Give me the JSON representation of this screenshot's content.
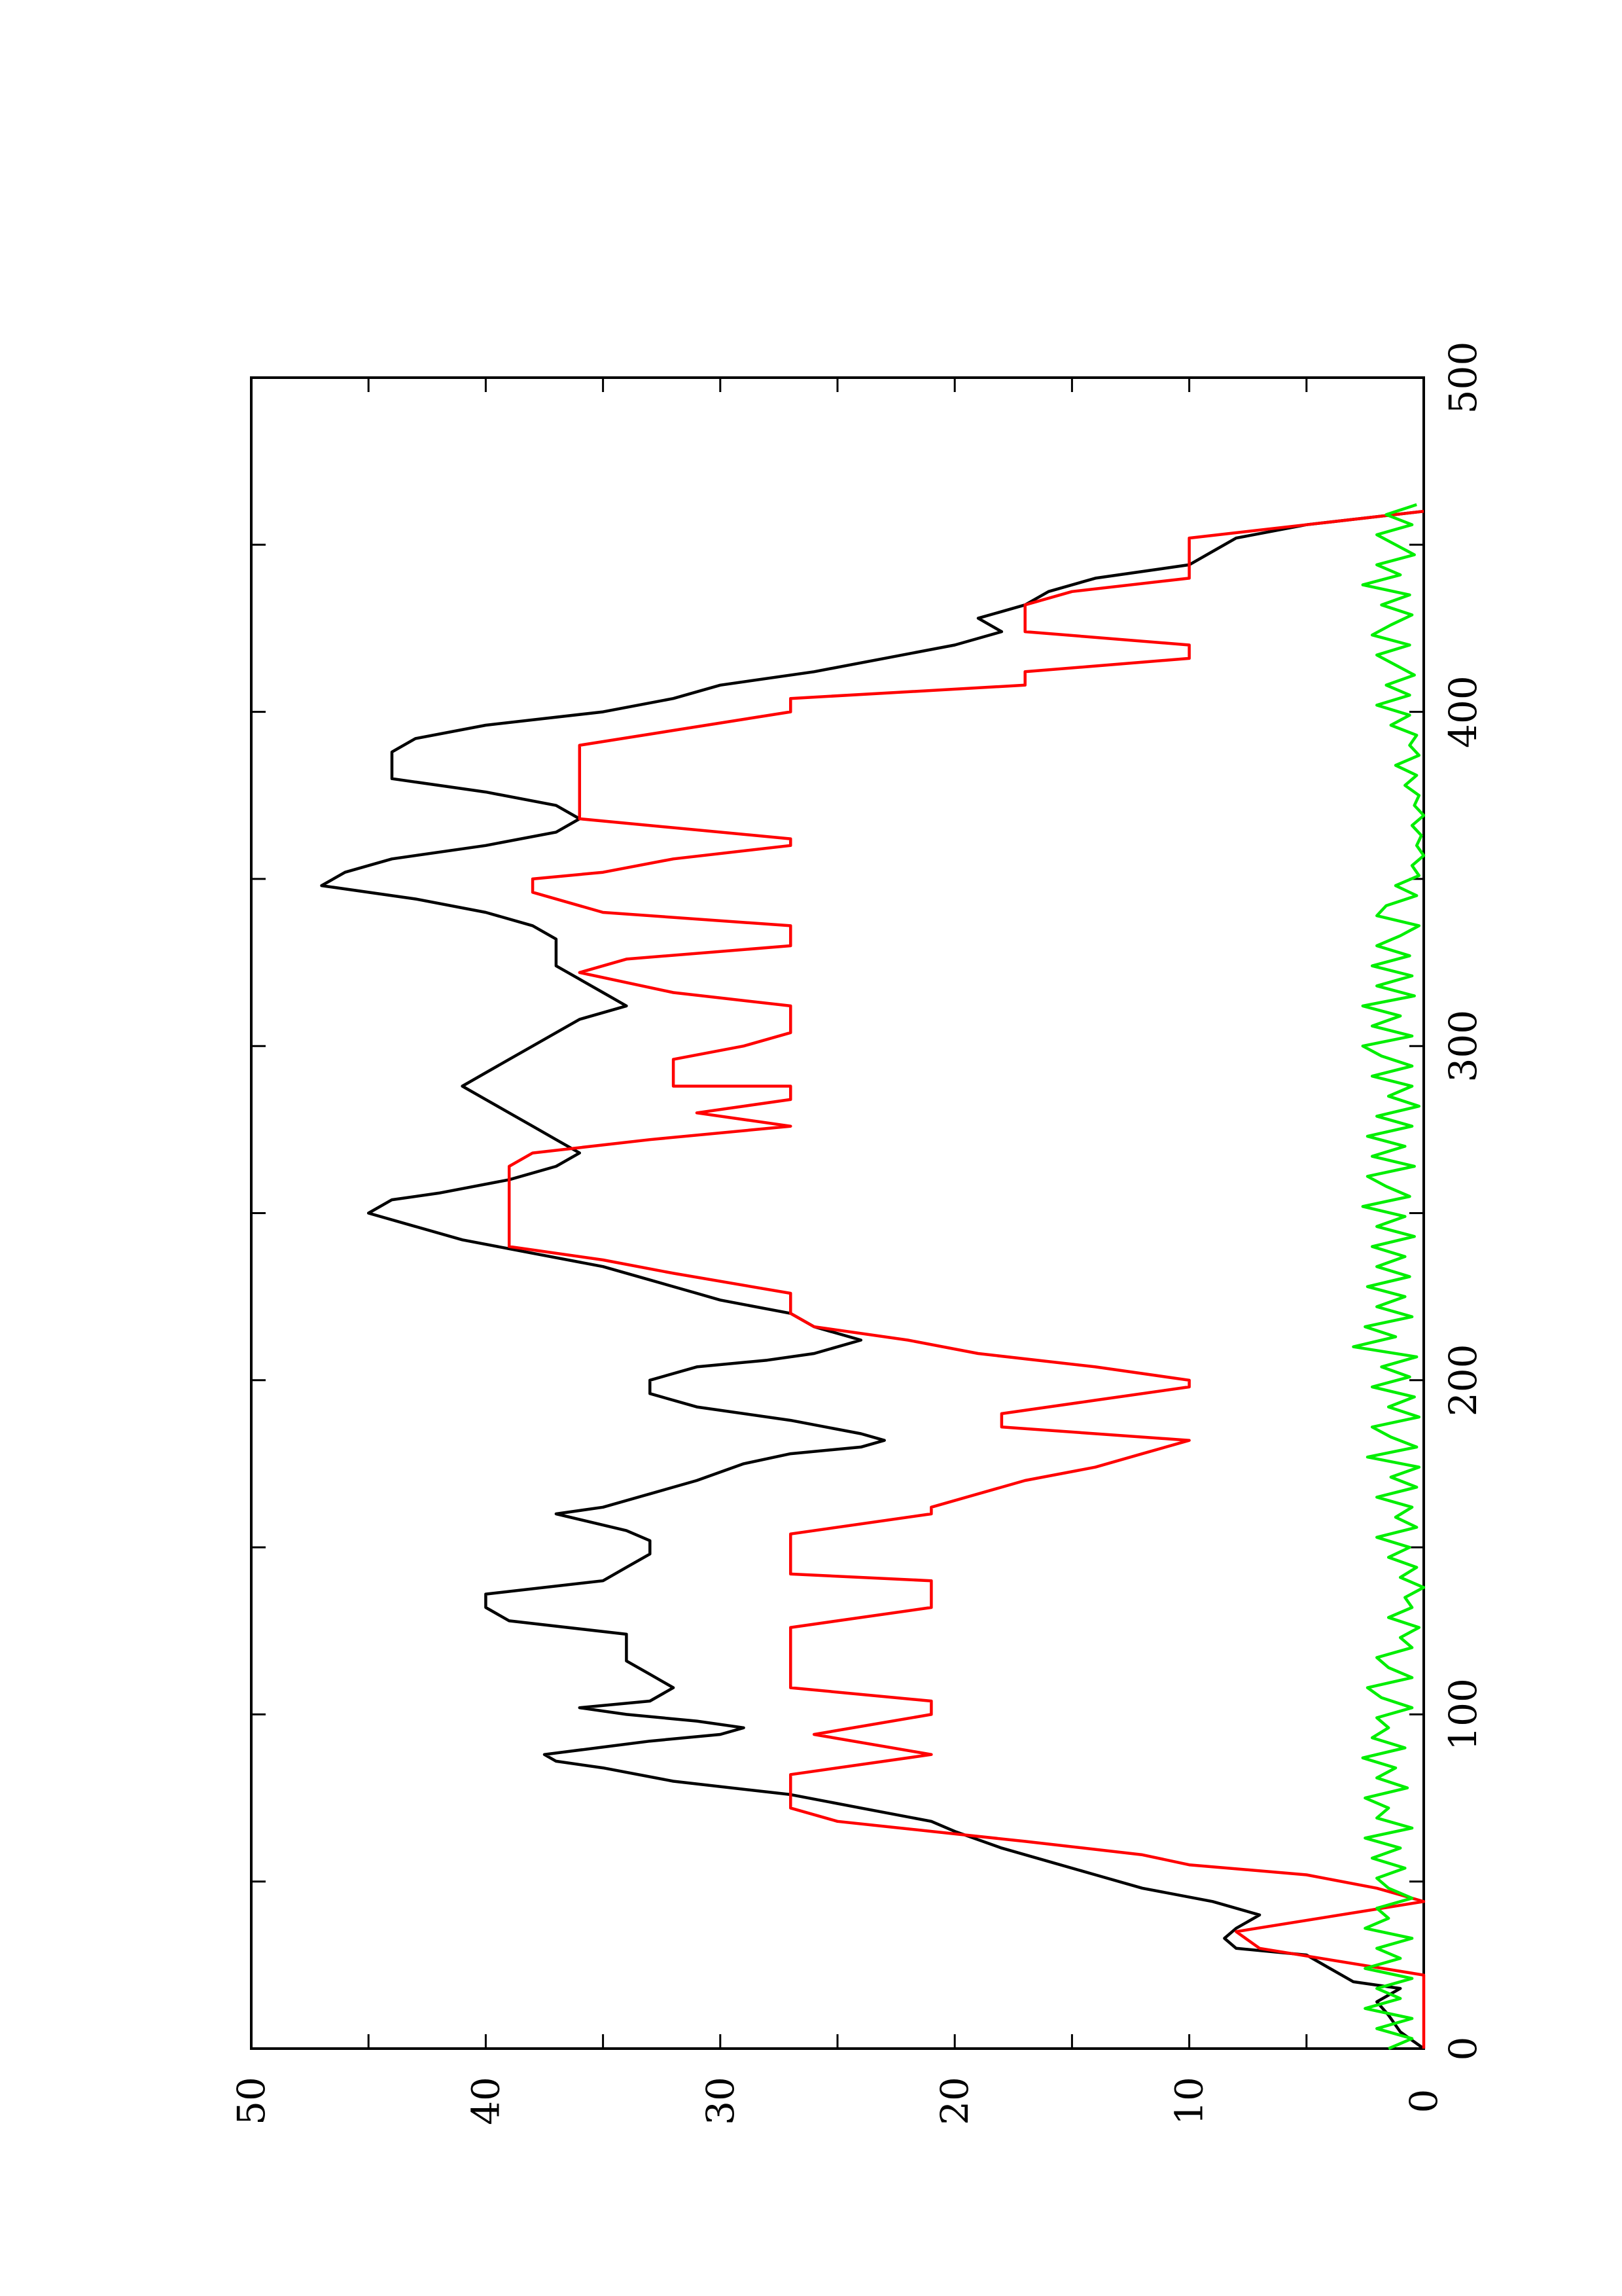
{
  "chart_data": {
    "type": "line",
    "orientation": "rotated-90-ccw",
    "title": "",
    "xlabel": "",
    "ylabel": "",
    "xlim": [
      0,
      500
    ],
    "ylim": [
      0,
      50
    ],
    "x_ticks": [
      "0",
      "100",
      "200",
      "300",
      "400",
      "500"
    ],
    "y_ticks": [
      "0",
      "10",
      "20",
      "30",
      "40",
      "50"
    ],
    "grid": false,
    "legend": "none",
    "series": [
      {
        "color": "#000000",
        "x": [
          0,
          5,
          10,
          14,
          18,
          20,
          24,
          28,
          30,
          33,
          36,
          40,
          44,
          48,
          52,
          56,
          60,
          65,
          68,
          72,
          76,
          80,
          84,
          86,
          88,
          92,
          94,
          96,
          98,
          100,
          102,
          104,
          108,
          112,
          116,
          120,
          124,
          128,
          132,
          136,
          140,
          144,
          148,
          152,
          155,
          160,
          162,
          166,
          170,
          175,
          178,
          180,
          182,
          184,
          188,
          192,
          196,
          200,
          204,
          206,
          208,
          212,
          216,
          220,
          224,
          226,
          230,
          234,
          238,
          242,
          246,
          250,
          254,
          256,
          260,
          264,
          268,
          272,
          276,
          280,
          284,
          288,
          292,
          296,
          300,
          304,
          308,
          312,
          316,
          320,
          324,
          328,
          332,
          336,
          340,
          344,
          348,
          352,
          356,
          360,
          364,
          368,
          372,
          376,
          380,
          384,
          388,
          392,
          396,
          400,
          404,
          408,
          412,
          416,
          420,
          424,
          428,
          432,
          436,
          440,
          444,
          448,
          452,
          456,
          460
        ],
        "y": [
          0,
          1,
          1.5,
          2,
          1,
          3,
          4,
          5,
          8,
          8.5,
          8,
          7,
          9,
          12,
          14,
          16,
          18,
          20,
          21,
          24,
          27,
          32,
          35,
          37,
          37.5,
          33,
          30,
          29,
          31,
          34,
          36,
          33,
          32,
          33,
          34,
          34,
          34,
          39,
          40,
          40,
          35,
          34,
          33,
          33,
          34,
          37,
          35,
          33,
          31,
          29,
          27,
          24,
          23,
          24,
          27,
          31,
          33,
          33,
          31,
          28,
          26,
          24,
          26,
          27,
          30,
          31,
          33,
          35,
          38,
          41,
          43,
          45,
          44,
          42,
          39,
          37,
          36,
          37,
          38,
          39,
          40,
          41,
          40,
          39,
          38,
          37,
          36,
          34,
          35,
          36,
          37,
          37,
          37,
          38,
          40,
          43,
          47,
          46,
          44,
          40,
          37,
          36,
          37,
          40,
          44,
          44,
          44,
          43,
          40,
          35,
          32,
          30,
          26,
          23,
          20,
          18,
          19,
          17,
          16,
          14,
          10,
          9,
          8,
          5,
          0
        ]
      },
      {
        "color": "#ff0000",
        "x": [
          0,
          22,
          30,
          35,
          44,
          46,
          48,
          52,
          55,
          58,
          62,
          68,
          72,
          78,
          82,
          88,
          88,
          94,
          94,
          100,
          100,
          104,
          108,
          108,
          116,
          120,
          120,
          126,
          132,
          132,
          140,
          142,
          148,
          148,
          154,
          160,
          162,
          170,
          174,
          178,
          182,
          186,
          190,
          194,
          198,
          200,
          204,
          208,
          212,
          216,
          220,
          226,
          232,
          236,
          240,
          246,
          250,
          254,
          260,
          264,
          268,
          272,
          276,
          280,
          284,
          288,
          288,
          296,
          300,
          304,
          304,
          312,
          316,
          316,
          322,
          322,
          326,
          330,
          336,
          340,
          340,
          346,
          350,
          352,
          356,
          360,
          362,
          368,
          370,
          374,
          378,
          380,
          386,
          390,
          400,
          404,
          408,
          412,
          416,
          420,
          424,
          428,
          430,
          432,
          436,
          440,
          444,
          448,
          452,
          456,
          460
        ],
        "y": [
          0,
          0,
          7,
          8,
          0,
          1,
          2,
          5,
          10,
          12,
          17,
          25,
          27,
          27,
          27,
          21,
          21,
          26,
          26,
          21,
          21,
          21,
          27,
          27,
          27,
          27,
          27,
          27,
          21,
          21,
          21,
          27,
          27,
          27,
          27,
          21,
          21,
          17,
          14,
          12,
          10,
          18,
          18,
          14,
          10,
          10,
          14,
          19,
          22,
          26,
          27,
          27,
          32,
          35,
          39,
          39,
          39,
          39,
          39,
          39,
          38,
          33,
          27,
          31,
          27,
          27,
          32,
          32,
          29,
          27,
          27,
          27,
          32,
          32,
          36,
          36,
          34,
          27,
          27,
          35,
          35,
          38,
          38,
          35,
          32,
          27,
          27,
          36,
          36,
          36,
          36,
          36,
          36,
          36,
          27,
          27,
          17,
          17,
          10,
          10,
          17,
          17,
          17,
          17,
          15,
          10,
          10,
          10,
          10,
          5,
          0
        ]
      },
      {
        "color": "#00ee00",
        "x": [
          0,
          3,
          6,
          9,
          12,
          15,
          18,
          21,
          24,
          27,
          30,
          33,
          36,
          39,
          42,
          45,
          48,
          51,
          54,
          57,
          60,
          63,
          66,
          69,
          72,
          75,
          78,
          81,
          84,
          87,
          90,
          93,
          96,
          99,
          102,
          105,
          108,
          111,
          114,
          117,
          120,
          123,
          126,
          129,
          132,
          135,
          138,
          141,
          144,
          147,
          150,
          153,
          156,
          159,
          162,
          165,
          168,
          171,
          174,
          177,
          180,
          183,
          186,
          189,
          192,
          195,
          198,
          201,
          204,
          207,
          210,
          213,
          216,
          219,
          222,
          225,
          228,
          231,
          234,
          237,
          240,
          243,
          246,
          249,
          252,
          255,
          258,
          261,
          264,
          267,
          270,
          273,
          276,
          279,
          282,
          285,
          288,
          291,
          294,
          297,
          300,
          303,
          306,
          309,
          312,
          315,
          318,
          321,
          324,
          327,
          330,
          333,
          336,
          339,
          342,
          345,
          348,
          351,
          354,
          357,
          360,
          363,
          366,
          369,
          372,
          375,
          378,
          381,
          384,
          387,
          390,
          393,
          396,
          399,
          402,
          405,
          408,
          411,
          414,
          417,
          420,
          423,
          426,
          429,
          432,
          435,
          438,
          441,
          444,
          447,
          450,
          453,
          456,
          459,
          462
        ],
        "y": [
          1.5,
          0.5,
          2,
          0.5,
          2.5,
          1,
          2,
          0.5,
          2.5,
          1,
          2,
          0.5,
          2.5,
          1.5,
          2,
          0.5,
          1.5,
          2,
          0.8,
          2.2,
          1,
          2.5,
          0.5,
          2,
          1.5,
          2.5,
          0.7,
          2,
          1.2,
          2.6,
          0.8,
          2.2,
          1.5,
          2,
          0.5,
          1.8,
          2.4,
          0.5,
          1.5,
          2,
          0.5,
          1,
          0.2,
          1.5,
          0.5,
          0.8,
          0,
          1,
          0.3,
          1.5,
          0.6,
          2,
          0.3,
          1.2,
          0.5,
          2,
          0.3,
          1.4,
          0.2,
          2.4,
          0.3,
          1.4,
          2.2,
          0.2,
          1.5,
          0.4,
          2.2,
          0.6,
          1.8,
          0.3,
          3,
          1.2,
          2.5,
          0.5,
          2,
          0.8,
          2.4,
          0.6,
          2,
          0.8,
          2.2,
          0.4,
          2,
          0.8,
          2.6,
          0.6,
          1.6,
          2.4,
          0.4,
          2.2,
          0.8,
          2.4,
          0.5,
          2,
          0.2,
          1.5,
          0.5,
          2.2,
          0.5,
          1.8,
          2.6,
          0.5,
          2.2,
          1,
          2.6,
          0.4,
          2,
          0.5,
          2.2,
          0.6,
          2,
          1,
          0.2,
          2,
          1.6,
          0.3,
          1.2,
          0.2,
          0.5,
          0,
          0.3,
          0.1,
          0.5,
          0,
          0.4,
          0.2,
          0.8,
          0.3,
          1.2,
          0.2,
          0.6,
          0.3,
          1.4,
          0.6,
          2,
          0.6,
          1.6,
          0.4,
          1.2,
          2,
          0.6,
          2.2,
          1.4,
          0.5,
          1.8,
          0.6,
          2.6,
          1,
          2,
          0.4,
          1.2,
          2,
          0.5,
          1.6,
          0.3
        ]
      }
    ]
  }
}
